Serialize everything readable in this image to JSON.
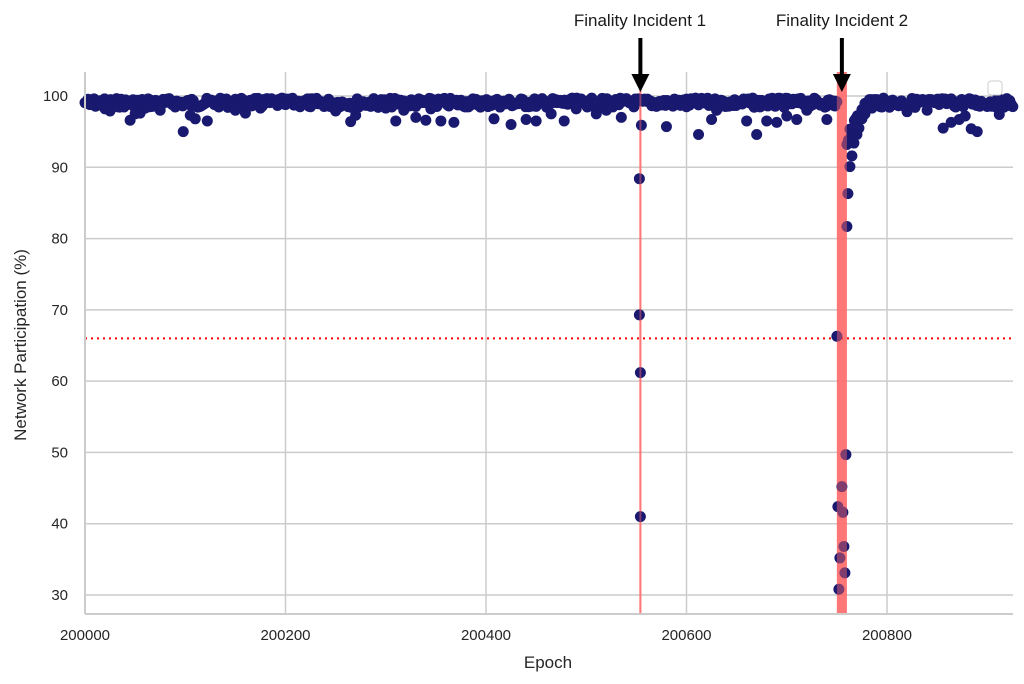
{
  "chart_data": {
    "type": "scatter",
    "title": "",
    "xlabel": "Epoch",
    "ylabel": "Network Participation (%)",
    "xlim": [
      200000,
      200926
    ],
    "ylim": [
      27.4,
      103.4
    ],
    "x_ticks": [
      200000,
      200200,
      200400,
      200600,
      200800
    ],
    "x_tick_labels": [
      "200000",
      "200200",
      "200400",
      "200600",
      "200800"
    ],
    "y_ticks": [
      30,
      40,
      50,
      60,
      70,
      80,
      90,
      100
    ],
    "y_tick_labels": [
      "30",
      "40",
      "50",
      "60",
      "70",
      "80",
      "90",
      "100"
    ],
    "grid": true,
    "legend": {
      "position": "upper right",
      "entries": []
    },
    "marker_color": "#191970",
    "threshold_line": {
      "y": 66.0,
      "color": "#ff0000",
      "style": "dotted"
    },
    "incident_spans": [
      {
        "label": "Finality Incident 1",
        "x_start": 200553,
        "x_end": 200555,
        "color": "#ff6b6b"
      },
      {
        "label": "Finality Incident 2",
        "x_start": 200750,
        "x_end": 200760,
        "color": "#ff6b6b"
      }
    ],
    "annotations": [
      {
        "text": "Finality Incident 1",
        "arrow_x": 200554,
        "arrow_tip_y": 100
      },
      {
        "text": "Finality Incident 2",
        "arrow_x": 200755,
        "arrow_tip_y": 100
      }
    ],
    "series": [
      {
        "name": "participation",
        "baseline_note": "dense band of points ~98.5-99.8% across all epochs 200000-200926",
        "points": [
          [
            200005,
            98.8
          ],
          [
            200020,
            98.2
          ],
          [
            200025,
            97.9
          ],
          [
            200045,
            96.6
          ],
          [
            200050,
            97.5
          ],
          [
            200055,
            97.6
          ],
          [
            200060,
            98.3
          ],
          [
            200075,
            98.0
          ],
          [
            200098,
            95.0
          ],
          [
            200105,
            97.3
          ],
          [
            200110,
            96.8
          ],
          [
            200122,
            96.5
          ],
          [
            200150,
            98.0
          ],
          [
            200160,
            97.6
          ],
          [
            200175,
            98.3
          ],
          [
            200200,
            98.8
          ],
          [
            200225,
            98.5
          ],
          [
            200250,
            97.9
          ],
          [
            200265,
            96.4
          ],
          [
            200270,
            97.3
          ],
          [
            200300,
            98.3
          ],
          [
            200310,
            96.5
          ],
          [
            200318,
            98.0
          ],
          [
            200330,
            97.0
          ],
          [
            200340,
            96.6
          ],
          [
            200345,
            98.2
          ],
          [
            200355,
            96.5
          ],
          [
            200368,
            96.3
          ],
          [
            200395,
            98.6
          ],
          [
            200408,
            96.8
          ],
          [
            200420,
            98.9
          ],
          [
            200425,
            96.0
          ],
          [
            200440,
            96.7
          ],
          [
            200450,
            96.5
          ],
          [
            200465,
            97.5
          ],
          [
            200478,
            96.5
          ],
          [
            200490,
            98.2
          ],
          [
            200510,
            97.5
          ],
          [
            200520,
            98.0
          ],
          [
            200535,
            97.0
          ],
          [
            200553,
            88.4
          ],
          [
            200553,
            69.3
          ],
          [
            200554,
            61.2
          ],
          [
            200554,
            41.0
          ],
          [
            200555,
            95.9
          ],
          [
            200580,
            95.7
          ],
          [
            200600,
            98.5
          ],
          [
            200612,
            94.6
          ],
          [
            200625,
            96.7
          ],
          [
            200630,
            98.0
          ],
          [
            200660,
            96.5
          ],
          [
            200670,
            94.6
          ],
          [
            200680,
            96.5
          ],
          [
            200690,
            96.3
          ],
          [
            200700,
            97.2
          ],
          [
            200710,
            96.7
          ],
          [
            200720,
            98.0
          ],
          [
            200740,
            96.7
          ],
          [
            200748,
            98.6
          ],
          [
            200750,
            66.3
          ],
          [
            200751,
            42.4
          ],
          [
            200752,
            30.8
          ],
          [
            200753,
            35.2
          ],
          [
            200755,
            45.2
          ],
          [
            200756,
            41.6
          ],
          [
            200757,
            36.8
          ],
          [
            200758,
            33.1
          ],
          [
            200759,
            49.7
          ],
          [
            200760,
            81.7
          ],
          [
            200761,
            86.3
          ],
          [
            200763,
            90.1
          ],
          [
            200765,
            91.6
          ],
          [
            200767,
            93.4
          ],
          [
            200770,
            94.6
          ],
          [
            200772,
            95.5
          ],
          [
            200775,
            96.8
          ],
          [
            200778,
            97.5
          ],
          [
            200785,
            98.3
          ],
          [
            200800,
            98.9
          ],
          [
            200820,
            97.8
          ],
          [
            200840,
            98.0
          ],
          [
            200856,
            95.5
          ],
          [
            200864,
            96.3
          ],
          [
            200872,
            96.7
          ],
          [
            200878,
            97.2
          ],
          [
            200884,
            95.4
          ],
          [
            200890,
            95.0
          ],
          [
            200912,
            97.4
          ]
        ]
      }
    ]
  },
  "labels": {
    "annotation_1": "Finality Incident 1",
    "annotation_2": "Finality Incident 2",
    "xlabel": "Epoch",
    "ylabel": "Network Participation (%)"
  }
}
